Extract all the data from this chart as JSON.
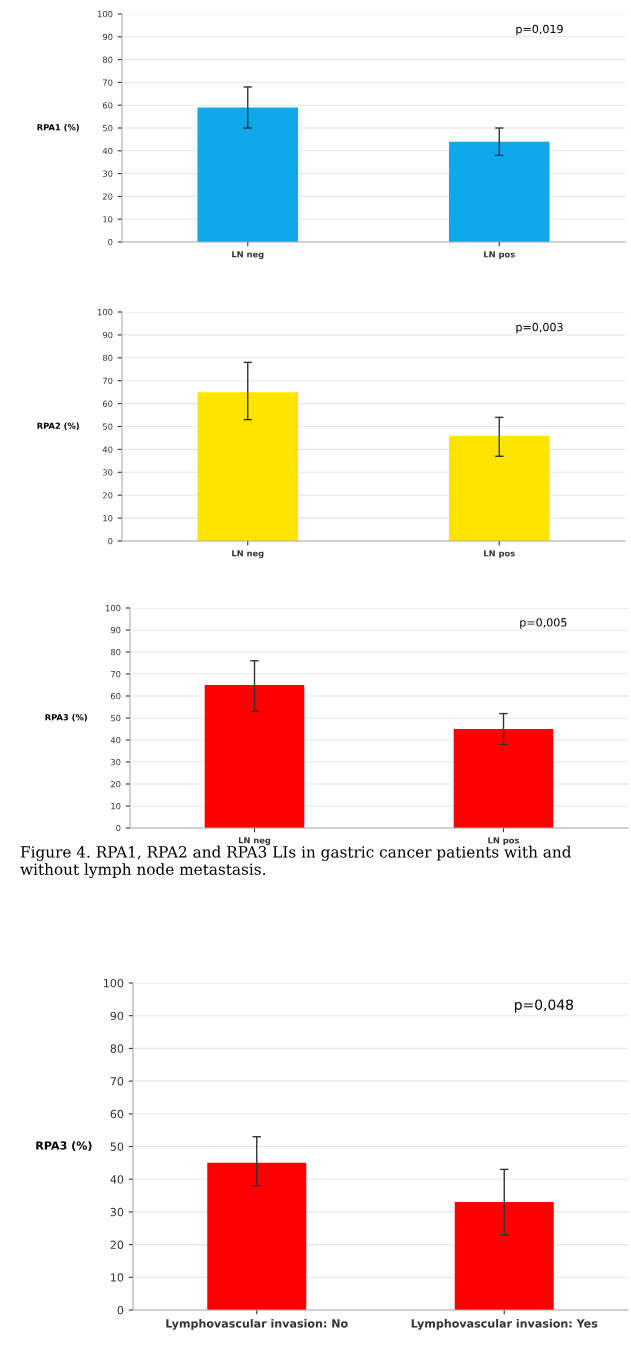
{
  "chart_data": [
    {
      "type": "bar",
      "ylabel": "RPA1 (%)",
      "categories": [
        "LN neg",
        "LN pos"
      ],
      "values": [
        59,
        44
      ],
      "errors": [
        [
          50,
          68
        ],
        [
          38,
          50
        ]
      ],
      "color": "#10a8e8",
      "ylim": [
        0,
        100
      ],
      "yticks": [
        0,
        10,
        20,
        30,
        40,
        50,
        60,
        70,
        80,
        90,
        100
      ],
      "grid": "y",
      "annotations": [
        "p=0,019"
      ]
    },
    {
      "type": "bar",
      "ylabel": "RPA2 (%)",
      "categories": [
        "LN neg",
        "LN pos"
      ],
      "values": [
        65,
        46
      ],
      "errors": [
        [
          53,
          78
        ],
        [
          37,
          54
        ]
      ],
      "color": "#ffe400",
      "ylim": [
        0,
        100
      ],
      "yticks": [
        0,
        10,
        20,
        30,
        40,
        50,
        60,
        70,
        80,
        90,
        100
      ],
      "grid": "y",
      "annotations": [
        "p=0,003"
      ]
    },
    {
      "type": "bar",
      "ylabel": "RPA3 (%)",
      "categories": [
        "LN neg",
        "LN pos"
      ],
      "values": [
        65,
        45
      ],
      "errors": [
        [
          53,
          76
        ],
        [
          38,
          52
        ]
      ],
      "color": "#ff0000",
      "ylim": [
        0,
        100
      ],
      "yticks": [
        0,
        10,
        20,
        30,
        40,
        50,
        60,
        70,
        80,
        90,
        100
      ],
      "grid": "y",
      "annotations": [
        "p=0,005",
        "Figure 4. RPA1, RPA2 and RPA3 LIs in gastric cancer patients with and without lymph node metastasis."
      ]
    },
    {
      "type": "bar",
      "ylabel": "RPA3 (%)",
      "categories": [
        "Lymphovascular invasion: No",
        "Lymphovascular invasion: Yes"
      ],
      "values": [
        45,
        33
      ],
      "errors": [
        [
          38,
          53
        ],
        [
          23,
          43
        ]
      ],
      "color": "#ff0000",
      "ylim": [
        0,
        100
      ],
      "yticks": [
        0,
        10,
        20,
        30,
        40,
        50,
        60,
        70,
        80,
        90,
        100
      ],
      "grid": "y",
      "annotations": [
        "p=0,048"
      ]
    }
  ]
}
